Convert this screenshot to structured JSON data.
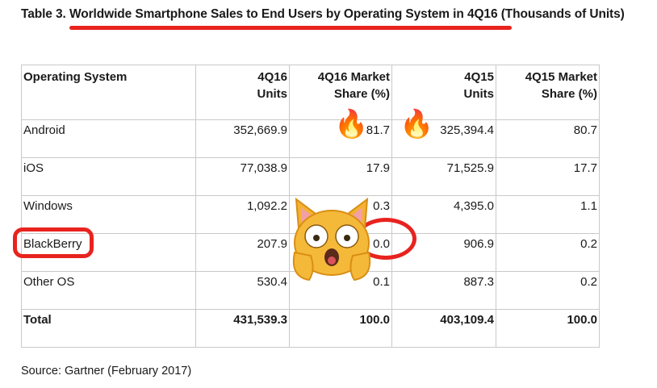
{
  "caption": {
    "prefix": "Table 3. ",
    "highlight": "Worldwide Smartphone Sales to End Users by Operating System in 4Q16",
    "suffix": " (Thousands of Units)"
  },
  "table": {
    "headers": [
      [
        "Operating System",
        ""
      ],
      [
        "4Q16",
        "Units"
      ],
      [
        "4Q16 Market",
        "Share (%)"
      ],
      [
        "4Q15",
        "Units"
      ],
      [
        "4Q15 Market",
        "Share (%)"
      ]
    ],
    "rows": [
      [
        "Android",
        "352,669.9",
        "81.7",
        "325,394.4",
        "80.7"
      ],
      [
        "iOS",
        "77,038.9",
        "17.9",
        "71,525.9",
        "17.7"
      ],
      [
        "Windows",
        "1,092.2",
        "0.3",
        "4,395.0",
        "1.1"
      ],
      [
        "BlackBerry",
        "207.9",
        "0.0",
        "906.9",
        "0.2"
      ],
      [
        "Other OS",
        "530.4",
        "0.1",
        "887.3",
        "0.2"
      ]
    ],
    "total": [
      "Total",
      "431,539.3",
      "100.0",
      "403,109.4",
      "100.0"
    ]
  },
  "source": "Source: Gartner (February 2017)",
  "annotations": {
    "color": "#e8231f",
    "fire_icon": "🔥",
    "cat_icon": "weary-cat-face-icon"
  }
}
